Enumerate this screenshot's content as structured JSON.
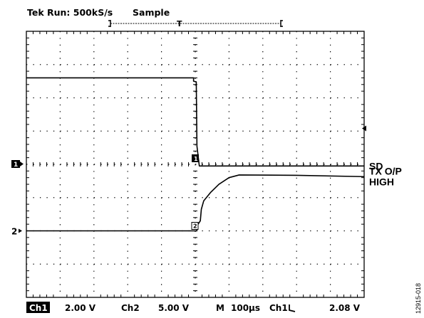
{
  "header": {
    "run_status": "Tek Run: 500kS/s",
    "acq_mode": "Sample",
    "trigger_marker": "T"
  },
  "bottom_bar": {
    "ch1_label": "Ch1",
    "ch1_scale": "2.00 V",
    "ch2_label": "Ch2",
    "ch2_scale": "5.00 V",
    "timebase_label": "M",
    "timebase": "100µs",
    "trigger_source": "Ch1",
    "trigger_slope": "falling-edge-icon",
    "trigger_level": "2.08 V"
  },
  "figure_id": "12915-018",
  "markers": {
    "ch1": "1",
    "ch2": "2",
    "ch2_ref": "2",
    "trigger_arrow": "trigger-level-arrow-icon"
  },
  "chart_data": {
    "type": "line",
    "grid": true,
    "x_divisions": 10,
    "y_divisions": 8,
    "xlim": [
      0,
      10
    ],
    "ylim": [
      -4,
      4
    ],
    "series": [
      {
        "name": "SD",
        "label_lines": [
          "SD"
        ],
        "channel": "1",
        "color": "#000000",
        "points": [
          [
            0,
            2.6
          ],
          [
            4.95,
            2.6
          ],
          [
            4.95,
            2.5
          ],
          [
            5.03,
            2.48
          ],
          [
            5.05,
            0.55
          ],
          [
            5.12,
            -0.05
          ],
          [
            10,
            -0.05
          ]
        ]
      },
      {
        "name": "TX O/P HIGH",
        "label_lines": [
          "TX O/P",
          "HIGH"
        ],
        "channel": "2",
        "color": "#000000",
        "points": [
          [
            0,
            -2.0
          ],
          [
            5.05,
            -2.0
          ],
          [
            5.05,
            -1.85
          ],
          [
            5.15,
            -1.7
          ],
          [
            5.18,
            -1.35
          ],
          [
            5.25,
            -1.1
          ],
          [
            5.45,
            -0.85
          ],
          [
            5.7,
            -0.6
          ],
          [
            6.0,
            -0.4
          ],
          [
            6.3,
            -0.32
          ],
          [
            8.0,
            -0.33
          ],
          [
            10,
            -0.37
          ]
        ]
      }
    ],
    "ch1_ground_div": 0,
    "ch2_ground_div": -2.0,
    "trigger_level_div": 1.08,
    "trigger_position_div": 5.0
  }
}
